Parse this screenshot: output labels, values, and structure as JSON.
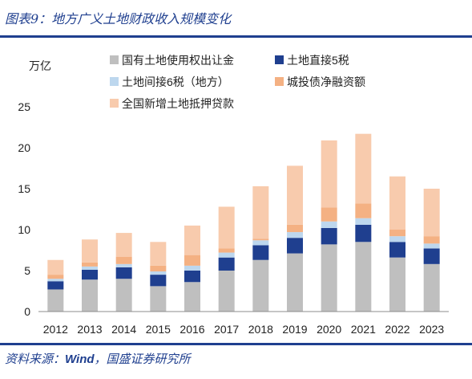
{
  "figure": {
    "title": "图表9：地方广义土地财政收入规模变化",
    "source_prefix": "资料来源：",
    "source_en": "Wind",
    "source_suffix": "，国盛证券研究所"
  },
  "colors": {
    "rule": "#1f3f8f"
  },
  "chart_data": {
    "type": "bar",
    "stacked": true,
    "title": "",
    "xlabel": "",
    "ylabel": "万亿",
    "ylim": [
      0,
      25
    ],
    "yticks": [
      0,
      5,
      10,
      15,
      20,
      25
    ],
    "grid": false,
    "legend_position": "top",
    "categories": [
      "2012",
      "2013",
      "2014",
      "2015",
      "2016",
      "2017",
      "2018",
      "2019",
      "2020",
      "2021",
      "2022",
      "2023"
    ],
    "series": [
      {
        "name": "国有土地使用权出让金",
        "color": "#bfbfbf",
        "values": [
          2.7,
          3.9,
          4.0,
          3.1,
          3.6,
          5.0,
          6.3,
          7.1,
          8.2,
          8.5,
          6.6,
          5.8
        ]
      },
      {
        "name": "土地直接5税",
        "color": "#1f3f8f",
        "values": [
          1.0,
          1.2,
          1.4,
          1.4,
          1.4,
          1.6,
          1.8,
          1.9,
          2.0,
          2.1,
          1.9,
          1.9
        ]
      },
      {
        "name": "土地间接6税（地方）",
        "color": "#bdd7ee",
        "values": [
          0.3,
          0.4,
          0.4,
          0.4,
          0.6,
          0.6,
          0.6,
          0.7,
          0.8,
          0.8,
          0.7,
          0.6
        ]
      },
      {
        "name": "城投债净融资额",
        "color": "#f4b183",
        "values": [
          0.5,
          0.5,
          0.9,
          0.7,
          1.3,
          0.5,
          0.2,
          0.9,
          1.7,
          1.8,
          0.8,
          0.9
        ]
      },
      {
        "name": "全国新增土地抵押贷款",
        "color": "#f8cbad",
        "values": [
          1.8,
          2.8,
          2.9,
          2.9,
          3.6,
          5.1,
          6.4,
          7.2,
          8.2,
          8.5,
          6.5,
          5.8
        ]
      }
    ]
  }
}
